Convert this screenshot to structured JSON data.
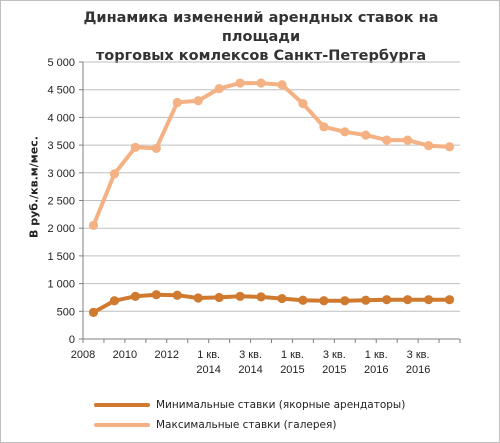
{
  "chart_data": {
    "type": "line",
    "title_line1": "Динамика изменений арендных ставок на площади",
    "title_line2": "торговых комлексов Санкт-Петербурга",
    "ylabel": "В  руб./кв.м/мес.",
    "ylim": [
      0,
      5000
    ],
    "yticks": [
      "0",
      "500",
      "1 000",
      "1 500",
      "2 000",
      "2 500",
      "3 000",
      "3 500",
      "4 000",
      "4 500",
      "5 000"
    ],
    "x_points": 18,
    "x_tick_labels": [
      {
        "index": 0,
        "line1": "2008",
        "line2": ""
      },
      {
        "index": 2,
        "line1": "2010",
        "line2": ""
      },
      {
        "index": 4,
        "line1": "2012",
        "line2": ""
      },
      {
        "index": 6,
        "line1": "1 кв.",
        "line2": "2014"
      },
      {
        "index": 8,
        "line1": "3 кв.",
        "line2": "2014"
      },
      {
        "index": 10,
        "line1": "1 кв.",
        "line2": "2015"
      },
      {
        "index": 12,
        "line1": "3 кв.",
        "line2": "2015"
      },
      {
        "index": 14,
        "line1": "1 кв.",
        "line2": "2016"
      },
      {
        "index": 16,
        "line1": "3 кв.",
        "line2": "2016"
      }
    ],
    "grid": true,
    "legend_position": "bottom",
    "series": [
      {
        "name": "Минимальные ставки (якорные арендаторы)",
        "color": "#d07a30",
        "values": [
          480,
          690,
          770,
          800,
          790,
          740,
          750,
          770,
          760,
          730,
          700,
          690,
          690,
          700,
          710,
          710,
          710,
          710
        ]
      },
      {
        "name": "Максимальные ставки (галерея)",
        "color": "#f4b183",
        "values": [
          2050,
          2980,
          3460,
          3440,
          4270,
          4300,
          4520,
          4620,
          4620,
          4590,
          4250,
          3830,
          3740,
          3680,
          3590,
          3590,
          3490,
          3470
        ]
      }
    ]
  }
}
